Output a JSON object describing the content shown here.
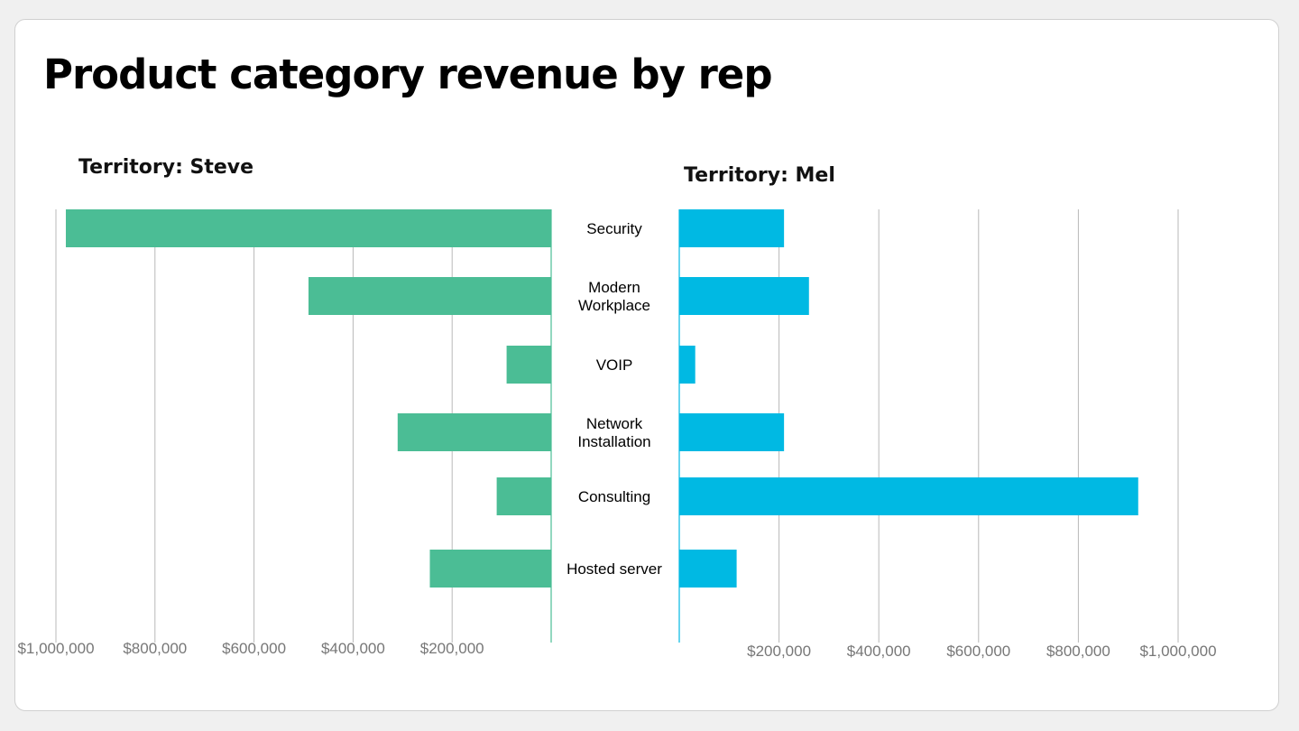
{
  "page": {
    "title": "Product category revenue by rep"
  },
  "chart_data": {
    "type": "bar",
    "orientation": "horizontal",
    "layout": "mirrored",
    "categories": [
      [
        "Security"
      ],
      [
        "Modern",
        "Workplace"
      ],
      [
        "VOIP"
      ],
      [
        "Network",
        "Installation"
      ],
      [
        "Consulting"
      ],
      [
        "Hosted server"
      ]
    ],
    "series": [
      {
        "name": "Territory: Steve",
        "color": "#4bbd95",
        "direction": "left",
        "values": [
          980000,
          490000,
          90000,
          310000,
          110000,
          245000
        ],
        "xlim": [
          0,
          1000000
        ],
        "ticks": [
          {
            "value": 1000000,
            "label": "$1,000,000"
          },
          {
            "value": 800000,
            "label": "$800,000"
          },
          {
            "value": 600000,
            "label": "$600,000"
          },
          {
            "value": 400000,
            "label": "$400,000"
          },
          {
            "value": 200000,
            "label": "$200,000"
          }
        ]
      },
      {
        "name": "Territory: Mel",
        "color": "#00b9e3",
        "direction": "right",
        "values": [
          210000,
          260000,
          32000,
          210000,
          920000,
          115000
        ],
        "xlim": [
          0,
          1000000
        ],
        "ticks": [
          {
            "value": 200000,
            "label": "$200,000"
          },
          {
            "value": 400000,
            "label": "$400,000"
          },
          {
            "value": 600000,
            "label": "$600,000"
          },
          {
            "value": 800000,
            "label": "$800,000"
          },
          {
            "value": 1000000,
            "label": "$1,000,000"
          }
        ]
      }
    ],
    "grid": true,
    "gridColor": "#b8b8b8"
  }
}
